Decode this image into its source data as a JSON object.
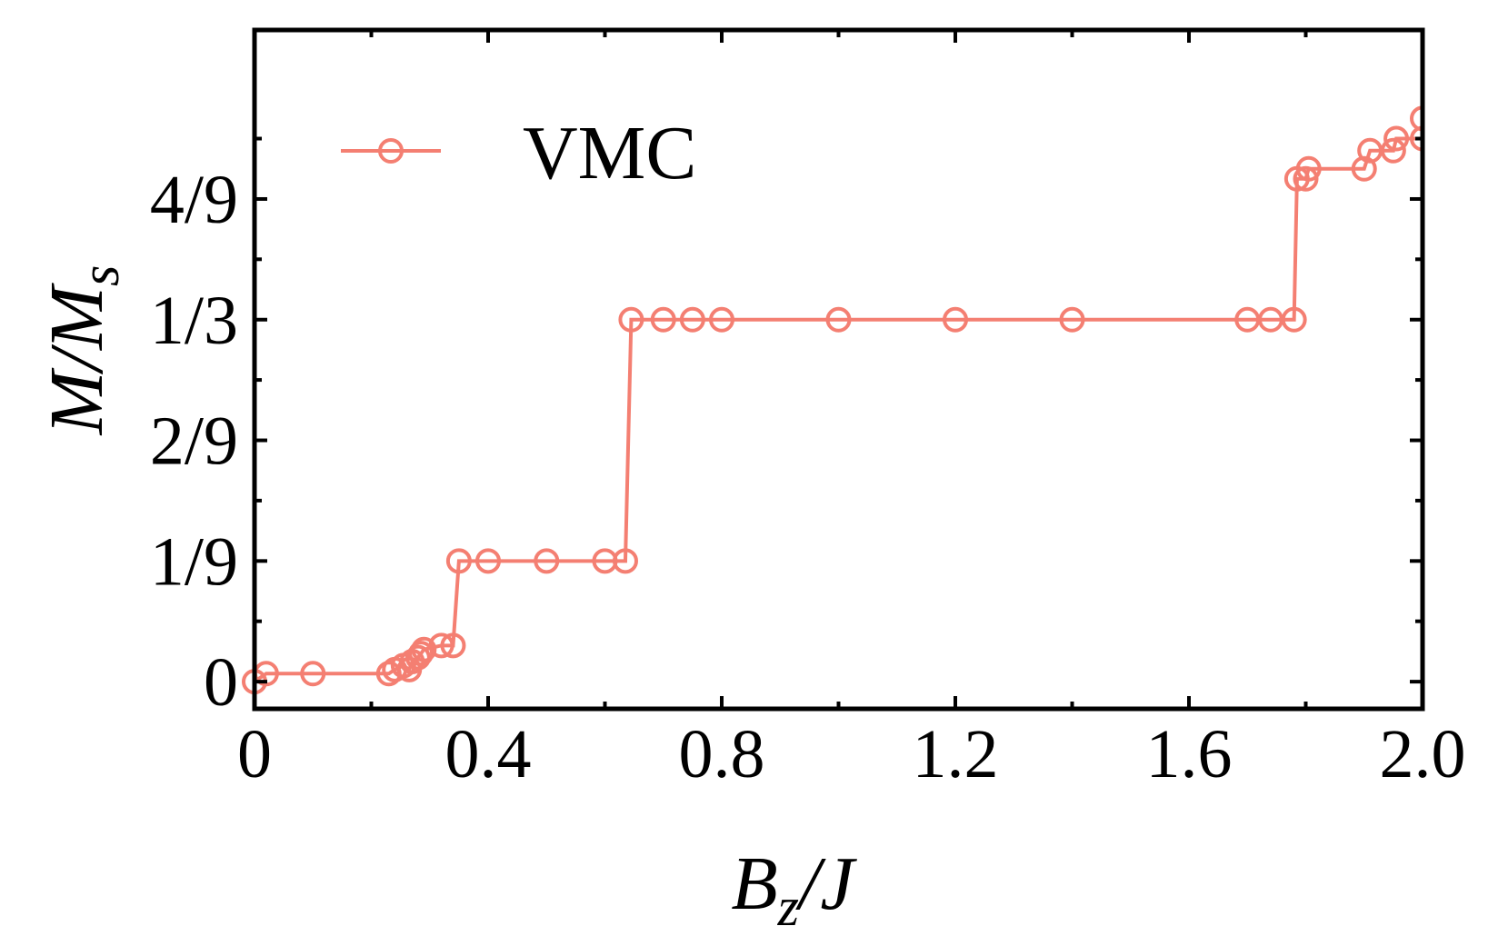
{
  "chart_data": {
    "type": "line",
    "title": "",
    "xlabel": {
      "main": "B",
      "sub": "z",
      "rest": "/J"
    },
    "ylabel": {
      "main": "M/M",
      "sub": "s"
    },
    "xlim": [
      0,
      2.0
    ],
    "ylim": [
      -0.025,
      0.6
    ],
    "grid": false,
    "legend_position": "top-left",
    "x_ticks": [
      {
        "value": 0,
        "label": "0"
      },
      {
        "value": 0.4,
        "label": "0.4"
      },
      {
        "value": 0.8,
        "label": "0.8"
      },
      {
        "value": 1.2,
        "label": "1.2"
      },
      {
        "value": 1.6,
        "label": "1.6"
      },
      {
        "value": 2.0,
        "label": "2.0"
      }
    ],
    "x_minor_ticks": [
      0.2,
      0.6,
      1.0,
      1.4,
      1.8
    ],
    "y_ticks": [
      {
        "value": 0,
        "label": "0"
      },
      {
        "value": 0.1111,
        "label": "1/9"
      },
      {
        "value": 0.2222,
        "label": "2/9"
      },
      {
        "value": 0.3333,
        "label": "1/3"
      },
      {
        "value": 0.4444,
        "label": "4/9"
      }
    ],
    "y_minor_ticks": [
      0.0556,
      0.1667,
      0.2778,
      0.3889,
      0.5
    ],
    "series": [
      {
        "name": "VMC",
        "color": "#f47f72",
        "marker": "open-circle",
        "points": [
          [
            0.0,
            0.0
          ],
          [
            0.02,
            0.0074
          ],
          [
            0.1,
            0.0074
          ],
          [
            0.23,
            0.0074
          ],
          [
            0.24,
            0.0111
          ],
          [
            0.255,
            0.0148
          ],
          [
            0.265,
            0.0111
          ],
          [
            0.27,
            0.0185
          ],
          [
            0.28,
            0.0222
          ],
          [
            0.285,
            0.0259
          ],
          [
            0.29,
            0.0296
          ],
          [
            0.32,
            0.0333
          ],
          [
            0.34,
            0.0333
          ],
          [
            0.35,
            0.1111
          ],
          [
            0.4,
            0.1111
          ],
          [
            0.5,
            0.1111
          ],
          [
            0.6,
            0.1111
          ],
          [
            0.635,
            0.1111
          ],
          [
            0.645,
            0.3333
          ],
          [
            0.7,
            0.3333
          ],
          [
            0.75,
            0.3333
          ],
          [
            0.8,
            0.3333
          ],
          [
            1.0,
            0.3333
          ],
          [
            1.2,
            0.3333
          ],
          [
            1.4,
            0.3333
          ],
          [
            1.7,
            0.3333
          ],
          [
            1.74,
            0.3333
          ],
          [
            1.78,
            0.3333
          ],
          [
            1.785,
            0.463
          ],
          [
            1.8,
            0.463
          ],
          [
            1.805,
            0.4722
          ],
          [
            1.9,
            0.4722
          ],
          [
            1.91,
            0.4889
          ],
          [
            1.95,
            0.4889
          ],
          [
            1.955,
            0.5
          ],
          [
            2.0,
            0.5
          ],
          [
            2.0,
            0.5185
          ]
        ]
      }
    ]
  }
}
